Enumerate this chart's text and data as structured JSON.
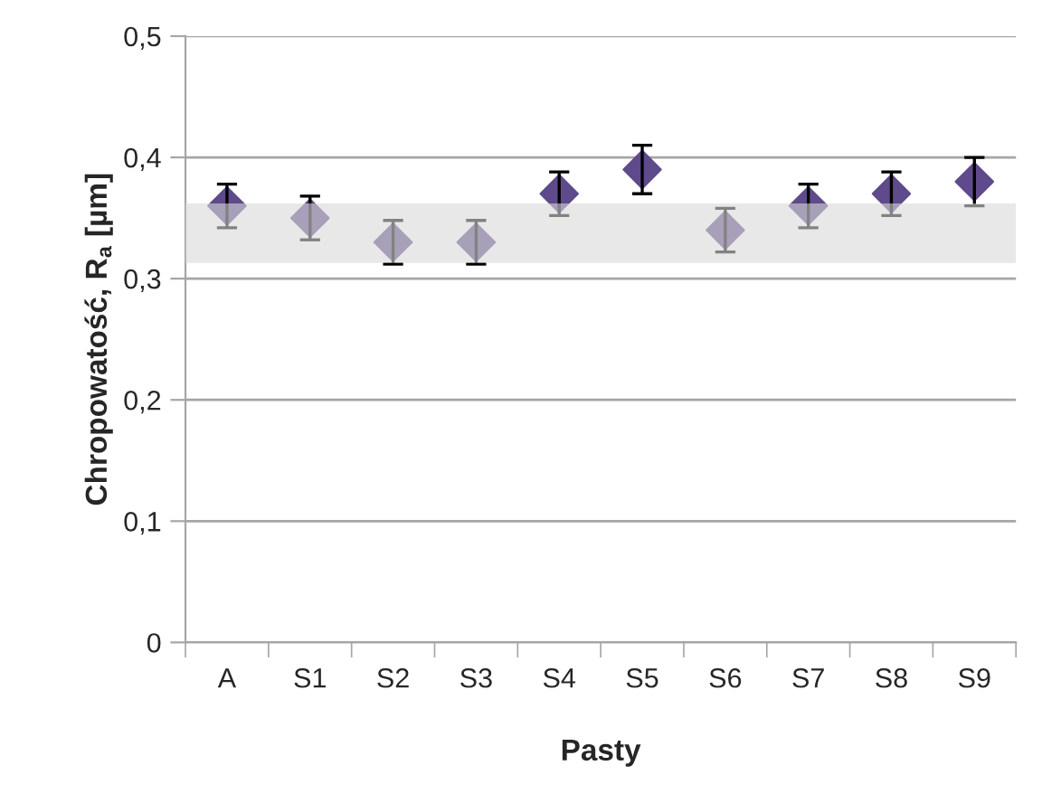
{
  "chart_data": {
    "type": "scatter",
    "xlabel": "Pasty",
    "ylabel": "Chropowatość, R$_{a}$ [µm]",
    "categories": [
      "A",
      "S1",
      "S2",
      "S3",
      "S4",
      "S5",
      "S6",
      "S7",
      "S8",
      "S9"
    ],
    "series": [
      {
        "color": "#5f4a8b",
        "values": [
          0.36,
          0.35,
          0.33,
          0.33,
          0.37,
          0.39,
          0.34,
          0.36,
          0.37,
          0.38
        ],
        "errors": [
          0.018,
          0.018,
          0.018,
          0.018,
          0.018,
          0.02,
          0.018,
          0.018,
          0.018,
          0.02
        ]
      }
    ],
    "ylim": [
      0,
      0.5
    ],
    "yticks": [
      {
        "value": 0,
        "label": "0"
      },
      {
        "value": 0.1,
        "label": "0,1"
      },
      {
        "value": 0.2,
        "label": "0,2"
      },
      {
        "value": 0.3,
        "label": "0,3"
      },
      {
        "value": 0.4,
        "label": "0,4"
      },
      {
        "value": 0.5,
        "label": "0,5"
      }
    ],
    "bands": [
      {
        "axis": "y",
        "from": 0.313,
        "to": 0.362,
        "color": "#d9d9d9"
      }
    ],
    "grid": "y",
    "marker": "diamond",
    "legend": false
  }
}
